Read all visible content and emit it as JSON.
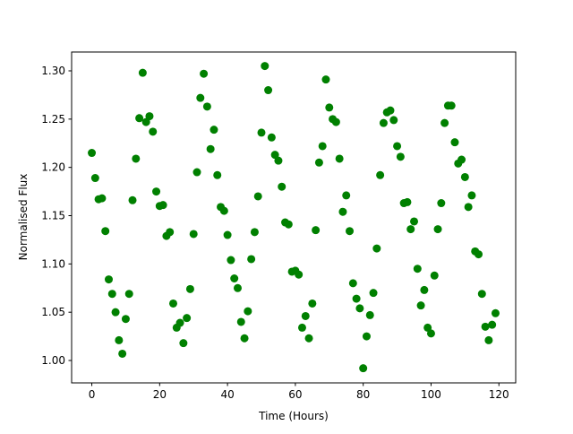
{
  "chart_data": {
    "type": "scatter",
    "xlabel": "Time (Hours)",
    "ylabel": "Normalised Flux",
    "x": [
      0,
      1,
      2,
      3,
      4,
      5,
      6,
      7,
      8,
      9,
      10,
      11,
      12,
      13,
      14,
      15,
      16,
      17,
      18,
      19,
      20,
      21,
      22,
      23,
      24,
      25,
      26,
      27,
      28,
      29,
      30,
      31,
      32,
      33,
      34,
      35,
      36,
      37,
      38,
      39,
      40,
      41,
      42,
      43,
      44,
      45,
      46,
      47,
      48,
      49,
      50,
      51,
      52,
      53,
      54,
      55,
      56,
      57,
      58,
      59,
      60,
      61,
      62,
      63,
      64,
      65,
      66,
      67,
      68,
      69,
      70,
      71,
      72,
      73,
      74,
      75,
      76,
      77,
      78,
      79,
      80,
      81,
      82,
      83,
      84,
      85,
      86,
      87,
      88,
      89,
      90,
      91,
      92,
      93,
      94,
      95,
      96,
      97,
      98,
      99,
      100,
      101,
      102,
      103,
      104,
      105,
      106,
      107,
      108,
      109,
      110,
      111,
      112,
      113,
      114,
      115,
      116,
      117,
      118,
      119
    ],
    "series": [
      {
        "color": "#008000",
        "values": [
          1.215,
          1.189,
          1.167,
          1.168,
          1.134,
          1.084,
          1.069,
          1.05,
          1.021,
          1.007,
          1.043,
          1.069,
          1.166,
          1.209,
          1.251,
          1.298,
          1.247,
          1.253,
          1.237,
          1.175,
          1.16,
          1.161,
          1.129,
          1.133,
          1.059,
          1.034,
          1.039,
          1.018,
          1.044,
          1.074,
          1.131,
          1.195,
          1.272,
          1.297,
          1.263,
          1.219,
          1.239,
          1.192,
          1.159,
          1.155,
          1.13,
          1.104,
          1.085,
          1.075,
          1.04,
          1.023,
          1.051,
          1.105,
          1.133,
          1.17,
          1.236,
          1.305,
          1.28,
          1.231,
          1.213,
          1.207,
          1.18,
          1.143,
          1.141,
          1.092,
          1.093,
          1.089,
          1.034,
          1.046,
          1.023,
          1.059,
          1.135,
          1.205,
          1.222,
          1.291,
          1.262,
          1.25,
          1.247,
          1.209,
          1.154,
          1.171,
          1.134,
          1.08,
          1.064,
          1.054,
          0.992,
          1.025,
          1.047,
          1.07,
          1.116,
          1.192,
          1.246,
          1.257,
          1.259,
          1.249,
          1.222,
          1.211,
          1.163,
          1.164,
          1.136,
          1.144,
          1.095,
          1.057,
          1.073,
          1.034,
          1.028,
          1.088,
          1.136,
          1.163,
          1.246,
          1.264,
          1.264,
          1.226,
          1.204,
          1.208,
          1.19,
          1.159,
          1.171,
          1.113,
          1.11,
          1.069,
          1.035,
          1.021,
          1.037,
          1.049
        ]
      }
    ],
    "xlim": [
      -5.95,
      124.95
    ],
    "xticks": [
      0,
      20,
      40,
      60,
      80,
      100,
      120
    ],
    "ylim": [
      0.9768,
      1.3195
    ],
    "yticks": [
      {
        "value": 1.0,
        "label": "1.00"
      },
      1.05,
      {
        "value": 1.1,
        "label": "1.10"
      },
      1.15,
      {
        "value": 1.2,
        "label": "1.20"
      },
      1.25,
      {
        "value": 1.3,
        "label": "1.30"
      }
    ]
  }
}
